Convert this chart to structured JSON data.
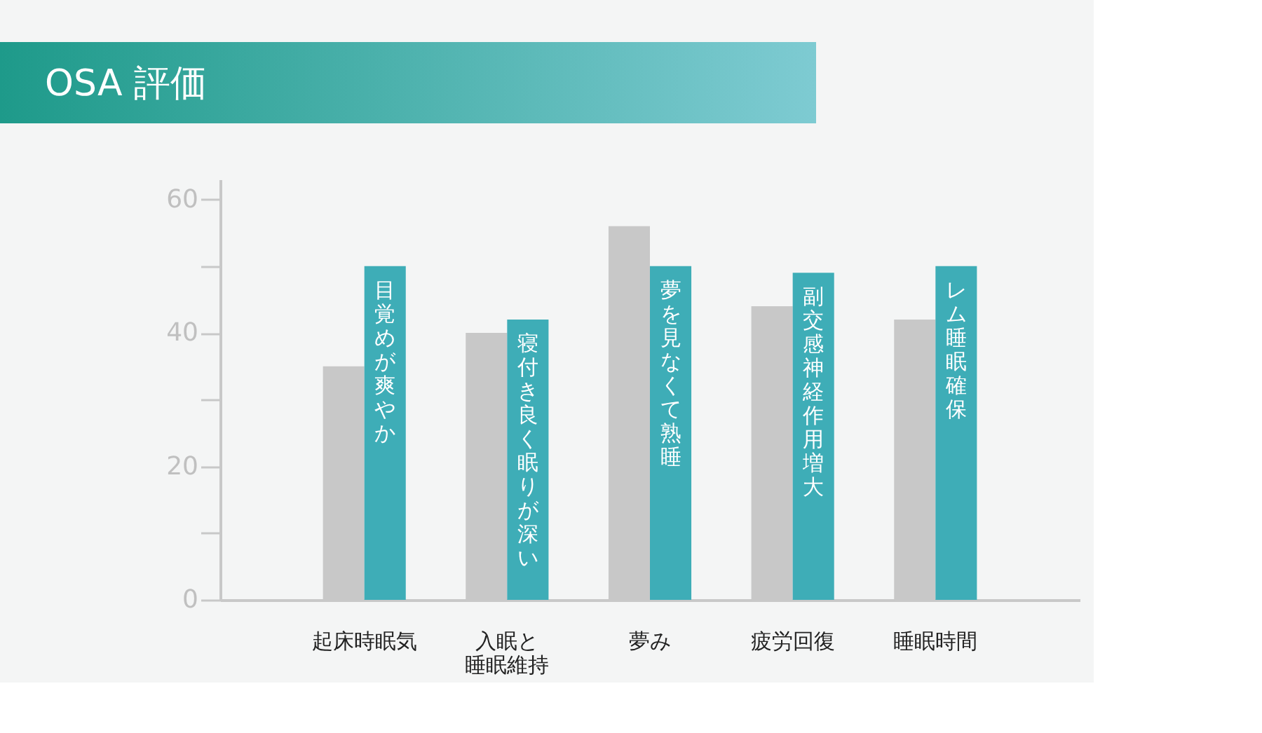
{
  "chart_data": {
    "type": "bar",
    "title": "OSA 評価",
    "categories": [
      "起床時眠気",
      "入眠と睡眠維持",
      "夢み",
      "疲労回復",
      "睡眠時間"
    ],
    "series": [
      {
        "color": "#c8c8c8",
        "values": [
          35,
          40,
          56,
          44,
          42
        ]
      },
      {
        "color": "#3eadb7",
        "values": [
          50,
          42,
          50,
          49,
          50
        ]
      }
    ],
    "ylim": [
      0,
      63
    ],
    "yticks": [
      0,
      {
        "value": 10,
        "label": null
      },
      20,
      {
        "value": 30,
        "label": null
      },
      40,
      {
        "value": 50,
        "label": null
      },
      60
    ],
    "grid": false,
    "legend": false,
    "annotations": [
      "目覚めが爽やか",
      "寝付き良く眠りが深い",
      "夢を見なくて熟睡",
      "副交感神経作用増大",
      "レム睡眠確保"
    ]
  }
}
